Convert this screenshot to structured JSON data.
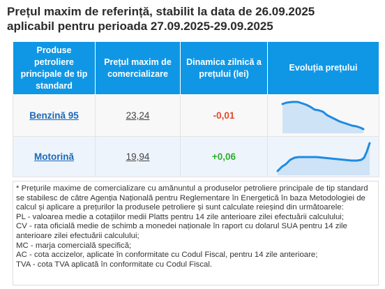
{
  "title": {
    "line1": "Prețul maxim de referință, stabilit la data de 26.09.2025",
    "line2": "aplicabil pentru perioada 27.09.2025-29.09.2025"
  },
  "table": {
    "headers": [
      "Produse petroliere principale de tip standard",
      "Prețul maxim de comercializare",
      "Dinamica zilnică a prețului (lei)",
      "Evoluția prețului"
    ],
    "rows": [
      {
        "product": "Benzină 95",
        "price": "23,24",
        "delta": "-0,01",
        "trend": "down"
      },
      {
        "product": "Motorină",
        "price": "19,94",
        "delta": "+0,06",
        "trend": "up"
      }
    ]
  },
  "colors": {
    "header_bg": "#0f97e5",
    "link": "#1a69b8",
    "negative": "#e24a2a",
    "positive": "#2fae2f",
    "spark_line": "#1f8be0",
    "spark_fill": "#cfe3f7"
  },
  "notes": [
    "* Prețurile maxime de comercializare cu amănuntul a produselor petroliere principale de tip standard se stabilesc de către Agenția Națională pentru Reglementare în Energetică în baza Metodologiei de calcul și aplicare a prețurilor la produsele petroliere și sunt calculate reieșind din următoarele:",
    "PL - valoarea medie a cotațiilor medii Platts pentru 14 zile anterioare zilei efectuării calculului;",
    "CV - rata oficială medie de schimb a monedei naționale în raport cu dolarul SUA pentru 14 zile anterioare zilei efectuării calculului;",
    "MC - marja comercială specifică;",
    "AC - cota accizelor, aplicate în conformitate cu Codul Fiscal, pentru 14 zile anterioare;",
    "TVA - cota TVA aplicată în conformitate cu Codul Fiscal."
  ]
}
